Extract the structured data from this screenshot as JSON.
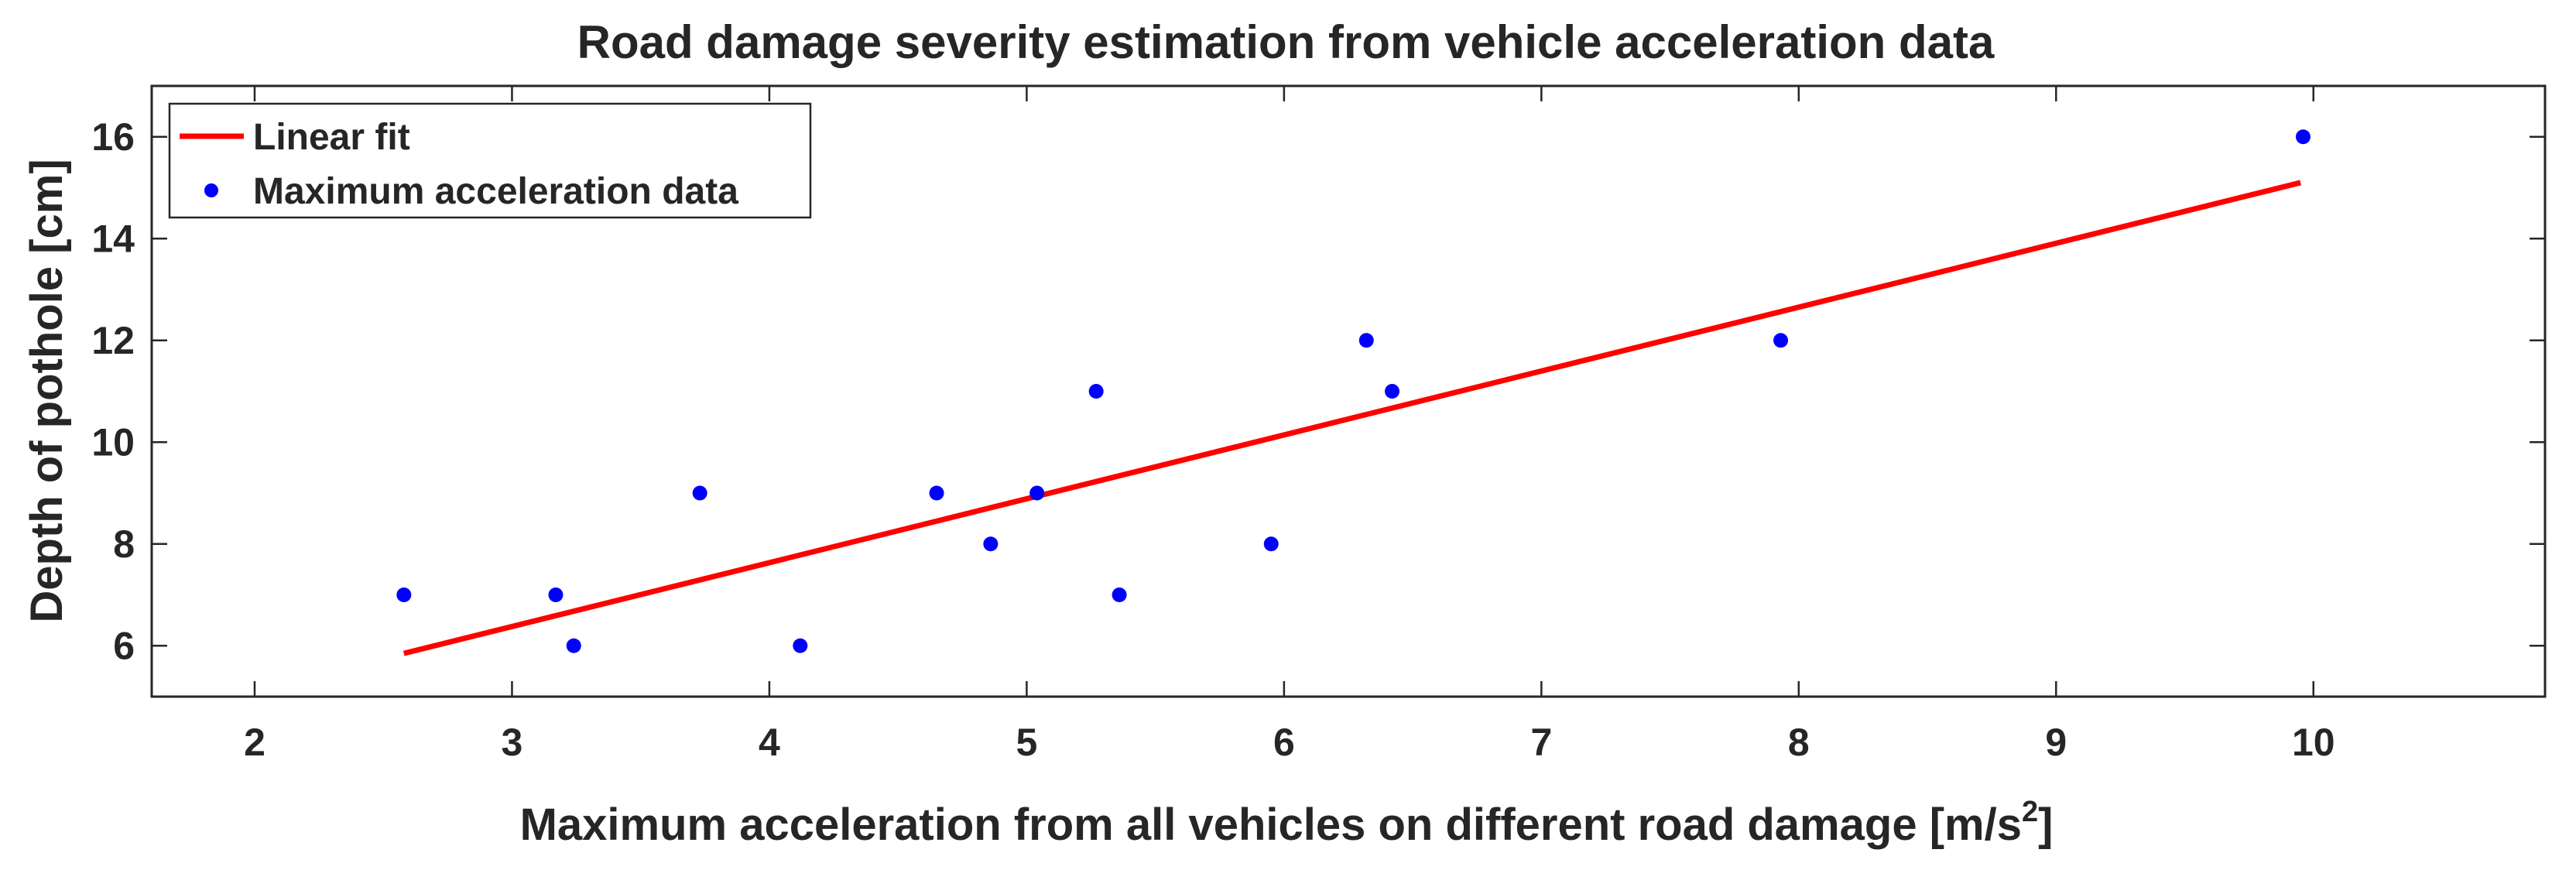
{
  "chart_data": {
    "type": "scatter",
    "title": "Road damage severity estimation from vehicle acceleration data",
    "xlabel": "Maximum acceleration from all vehicles on different road damage [m/s",
    "xlabel_superscript": "2",
    "xlabel_suffix": "]",
    "ylabel": "Depth of pothole [cm]",
    "xlim": [
      1.6,
      10.9
    ],
    "ylim": [
      5,
      17
    ],
    "xticks": [
      2,
      3,
      4,
      5,
      6,
      7,
      8,
      9,
      10
    ],
    "yticks": [
      6,
      8,
      10,
      12,
      14,
      16
    ],
    "grid": false,
    "legend_position": "top-left",
    "series": [
      {
        "name": "Linear fit",
        "kind": "line",
        "color": "#ff0000",
        "x": [
          2.58,
          9.95
        ],
        "y": [
          5.85,
          15.1
        ]
      },
      {
        "name": "Maximum acceleration data",
        "kind": "scatter",
        "color": "#0000ff",
        "x": [
          2.58,
          3.17,
          3.24,
          3.73,
          4.12,
          4.65,
          4.86,
          5.04,
          5.27,
          5.36,
          5.95,
          6.32,
          6.42,
          7.93,
          9.96
        ],
        "y": [
          7,
          7,
          6,
          9,
          6,
          9,
          8,
          9,
          11,
          7,
          8,
          12,
          11,
          12,
          16
        ]
      }
    ]
  }
}
